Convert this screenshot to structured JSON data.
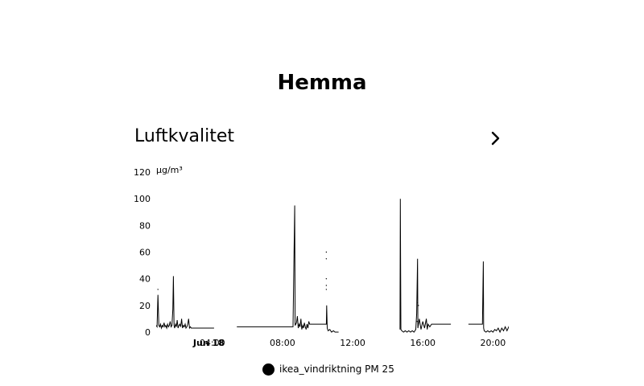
{
  "page": {
    "title": "Hemma"
  },
  "card": {
    "title": "Luftkvalitet",
    "more_icon": "chevron-right-icon"
  },
  "chart_data": {
    "type": "line",
    "unit": "µg/m³",
    "ylim": [
      0,
      120
    ],
    "yticks": [
      0,
      20,
      40,
      60,
      80,
      100,
      120
    ],
    "xlim": [
      0.8,
      20.9
    ],
    "xticks": [
      {
        "x": 3.8,
        "label": "Jun 18",
        "bold": true
      },
      {
        "x": 4.0,
        "label": "04:00"
      },
      {
        "x": 8.0,
        "label": "08:00"
      },
      {
        "x": 12.0,
        "label": "12:00"
      },
      {
        "x": 16.0,
        "label": "16:00"
      },
      {
        "x": 20.0,
        "label": "20:00"
      }
    ],
    "grid": false,
    "legend_position": "bottom",
    "series": [
      {
        "name": "ikea_vindriktning PM 25",
        "color": "#000000",
        "segments": [
          [
            [
              0.8,
              5
            ],
            [
              0.85,
              4
            ],
            [
              0.9,
              28
            ],
            [
              0.95,
              5
            ],
            [
              1.0,
              4
            ],
            [
              1.05,
              6
            ],
            [
              1.1,
              3
            ],
            [
              1.15,
              5
            ],
            [
              1.2,
              4
            ],
            [
              1.25,
              7
            ],
            [
              1.3,
              4
            ],
            [
              1.35,
              5
            ],
            [
              1.4,
              3
            ],
            [
              1.45,
              6
            ],
            [
              1.5,
              4
            ],
            [
              1.55,
              5
            ],
            [
              1.6,
              8
            ],
            [
              1.65,
              4
            ],
            [
              1.7,
              5
            ],
            [
              1.75,
              17
            ],
            [
              1.78,
              42
            ],
            [
              1.82,
              5
            ],
            [
              1.85,
              3
            ],
            [
              1.9,
              6
            ],
            [
              1.95,
              4
            ],
            [
              2.0,
              9
            ],
            [
              2.05,
              3
            ],
            [
              2.1,
              5
            ],
            [
              2.15,
              6
            ],
            [
              2.2,
              4
            ],
            [
              2.25,
              10
            ],
            [
              2.3,
              3
            ],
            [
              2.35,
              5
            ],
            [
              2.4,
              4
            ],
            [
              2.45,
              6
            ],
            [
              2.5,
              3
            ],
            [
              2.55,
              4
            ],
            [
              2.6,
              6
            ],
            [
              2.65,
              10
            ],
            [
              2.7,
              3
            ],
            [
              2.75,
              4
            ],
            [
              2.8,
              3
            ],
            [
              3.2,
              3
            ],
            [
              3.6,
              3
            ],
            [
              4.1,
              3
            ]
          ],
          [
            [
              5.4,
              4
            ],
            [
              6.2,
              4
            ],
            [
              8.1,
              4
            ],
            [
              8.6,
              4
            ],
            [
              8.7,
              95
            ],
            [
              8.72,
              5
            ],
            [
              8.8,
              7
            ],
            [
              8.85,
              12
            ],
            [
              8.9,
              3
            ],
            [
              8.95,
              6
            ],
            [
              9.0,
              4
            ],
            [
              9.05,
              10
            ],
            [
              9.1,
              2
            ],
            [
              9.15,
              5
            ],
            [
              9.2,
              3
            ],
            [
              9.25,
              7
            ],
            [
              9.3,
              4
            ],
            [
              9.35,
              2
            ],
            [
              9.4,
              6
            ],
            [
              9.45,
              3
            ],
            [
              9.5,
              8
            ],
            [
              9.55,
              6
            ],
            [
              10.2,
              6
            ],
            [
              10.5,
              6
            ],
            [
              10.52,
              20
            ],
            [
              10.55,
              3
            ],
            [
              10.6,
              1
            ],
            [
              10.7,
              2
            ],
            [
              10.8,
              0
            ],
            [
              10.9,
              1
            ],
            [
              11.0,
              0
            ],
            [
              11.2,
              0
            ]
          ],
          [
            [
              14.7,
              2
            ],
            [
              14.72,
              100
            ],
            [
              14.75,
              2
            ],
            [
              14.8,
              1
            ],
            [
              14.9,
              0
            ],
            [
              15.0,
              1
            ],
            [
              15.1,
              0
            ],
            [
              15.2,
              1
            ],
            [
              15.3,
              0
            ],
            [
              15.4,
              1
            ],
            [
              15.5,
              0
            ],
            [
              15.6,
              2
            ],
            [
              15.65,
              14
            ],
            [
              15.7,
              55
            ],
            [
              15.72,
              3
            ],
            [
              15.8,
              10
            ],
            [
              15.9,
              2
            ],
            [
              16.0,
              8
            ],
            [
              16.1,
              3
            ],
            [
              16.2,
              10
            ],
            [
              16.25,
              2
            ],
            [
              16.3,
              6
            ],
            [
              16.4,
              4
            ],
            [
              16.5,
              6
            ],
            [
              17.6,
              6
            ]
          ],
          [
            [
              18.6,
              6
            ],
            [
              19.4,
              6
            ],
            [
              19.45,
              53
            ],
            [
              19.47,
              3
            ],
            [
              19.5,
              1
            ],
            [
              19.6,
              0
            ],
            [
              19.7,
              1
            ],
            [
              19.8,
              0
            ],
            [
              19.9,
              1
            ],
            [
              20.0,
              0
            ],
            [
              20.1,
              2
            ],
            [
              20.2,
              1
            ],
            [
              20.3,
              3
            ],
            [
              20.4,
              0
            ],
            [
              20.5,
              3
            ],
            [
              20.6,
              1
            ],
            [
              20.7,
              4
            ],
            [
              20.8,
              1
            ],
            [
              20.9,
              4
            ],
            [
              21.0,
              1
            ],
            [
              21.1,
              3
            ],
            [
              21.2,
              2
            ],
            [
              21.3,
              5
            ],
            [
              21.4,
              1
            ],
            [
              21.5,
              3
            ],
            [
              21.6,
              0
            ],
            [
              21.7,
              0
            ],
            [
              21.75,
              25
            ],
            [
              21.78,
              2
            ],
            [
              21.85,
              0
            ]
          ]
        ],
        "dots": [
          [
            0.9,
            32
          ],
          [
            10.5,
            60
          ],
          [
            10.5,
            55
          ],
          [
            10.5,
            40
          ],
          [
            10.5,
            35
          ],
          [
            10.5,
            32
          ],
          [
            15.7,
            22
          ],
          [
            15.75,
            20
          ],
          [
            15.68,
            8
          ]
        ]
      }
    ]
  },
  "legend": {
    "label": "ikea_vindriktning PM 25",
    "color": "#000000"
  }
}
